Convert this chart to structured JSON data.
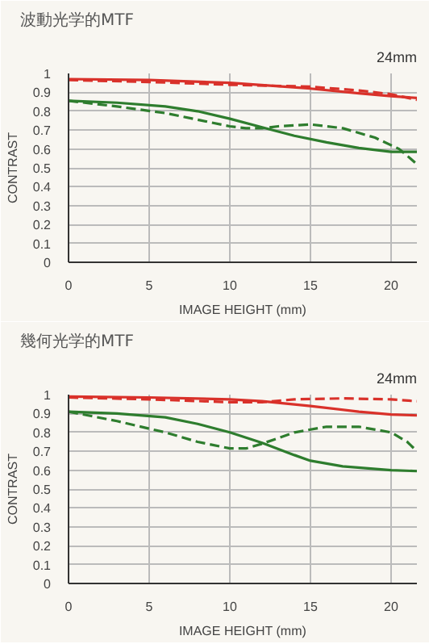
{
  "chart_data": [
    {
      "type": "line",
      "title": "波動光学的MTF",
      "subtitle": "24mm",
      "xlabel": "IMAGE HEIGHT (mm)",
      "ylabel": "CONTRAST",
      "xlim": [
        0,
        21.6
      ],
      "ylim": [
        0,
        1
      ],
      "xticks": [
        0,
        5,
        10,
        15,
        20
      ],
      "yticks": [
        0,
        0.1,
        0.2,
        0.3,
        0.4,
        0.5,
        0.6,
        0.7,
        0.8,
        0.9,
        1
      ],
      "grid": true,
      "series": [
        {
          "color": "#d9312a",
          "line_style": "solid",
          "x": [
            0,
            5,
            10,
            15,
            18,
            20,
            21.6
          ],
          "values": [
            0.97,
            0.965,
            0.95,
            0.92,
            0.895,
            0.88,
            0.87
          ]
        },
        {
          "color": "#d9312a",
          "line_style": "dashed",
          "x": [
            0,
            5,
            10,
            15,
            18,
            20,
            21.6
          ],
          "values": [
            0.965,
            0.955,
            0.94,
            0.93,
            0.91,
            0.89,
            0.86
          ]
        },
        {
          "color": "#2e7d2e",
          "line_style": "solid",
          "x": [
            0,
            3,
            6,
            8,
            10,
            12,
            14,
            16,
            18,
            20,
            21.6
          ],
          "values": [
            0.855,
            0.845,
            0.825,
            0.8,
            0.76,
            0.715,
            0.67,
            0.635,
            0.605,
            0.585,
            0.585
          ]
        },
        {
          "color": "#2e7d2e",
          "line_style": "dashed",
          "x": [
            0,
            3,
            6,
            8,
            10,
            11,
            12,
            13,
            15,
            17,
            19,
            20.5,
            21.6
          ],
          "values": [
            0.855,
            0.825,
            0.79,
            0.755,
            0.72,
            0.71,
            0.71,
            0.72,
            0.73,
            0.71,
            0.66,
            0.6,
            0.52
          ]
        }
      ]
    },
    {
      "type": "line",
      "title": "幾何光学的MTF",
      "subtitle": "24mm",
      "xlabel": "IMAGE HEIGHT (mm)",
      "ylabel": "CONTRAST",
      "xlim": [
        0,
        21.6
      ],
      "ylim": [
        0,
        1
      ],
      "xticks": [
        0,
        5,
        10,
        15,
        20
      ],
      "yticks": [
        0,
        0.1,
        0.2,
        0.3,
        0.4,
        0.5,
        0.6,
        0.7,
        0.8,
        0.9,
        1
      ],
      "grid": true,
      "series": [
        {
          "color": "#d9312a",
          "line_style": "solid",
          "x": [
            0,
            5,
            10,
            12,
            15,
            18,
            20,
            21.6
          ],
          "values": [
            0.99,
            0.985,
            0.975,
            0.965,
            0.94,
            0.91,
            0.895,
            0.89
          ]
        },
        {
          "color": "#d9312a",
          "line_style": "dashed",
          "x": [
            0,
            5,
            10,
            12,
            14,
            17,
            20,
            21.6
          ],
          "values": [
            0.985,
            0.975,
            0.96,
            0.96,
            0.975,
            0.98,
            0.975,
            0.965
          ]
        },
        {
          "color": "#2e7d2e",
          "line_style": "solid",
          "x": [
            0,
            3,
            6,
            8,
            10,
            12,
            14,
            15,
            17,
            20,
            21.6
          ],
          "values": [
            0.91,
            0.9,
            0.88,
            0.845,
            0.8,
            0.745,
            0.68,
            0.65,
            0.62,
            0.6,
            0.595
          ]
        },
        {
          "color": "#2e7d2e",
          "line_style": "dashed",
          "x": [
            0,
            3,
            6,
            8,
            10,
            11,
            12,
            14,
            16,
            18,
            20,
            21,
            21.6
          ],
          "values": [
            0.91,
            0.86,
            0.8,
            0.75,
            0.715,
            0.715,
            0.74,
            0.8,
            0.83,
            0.83,
            0.8,
            0.75,
            0.7
          ]
        }
      ]
    }
  ]
}
